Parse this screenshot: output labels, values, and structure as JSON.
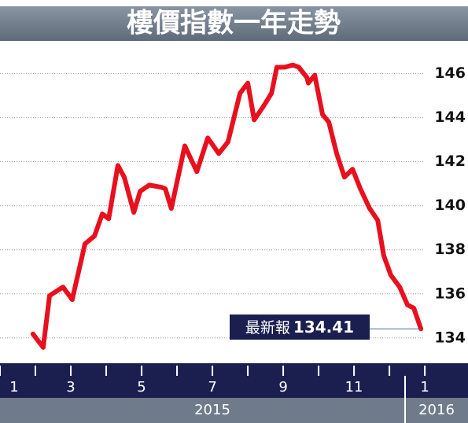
{
  "chart_data": {
    "type": "line",
    "title": "樓價指數一年走勢",
    "x": [
      1.93,
      2.22,
      2.4,
      2.78,
      3.04,
      3.4,
      3.67,
      3.89,
      4.07,
      4.33,
      4.51,
      4.78,
      4.96,
      5.22,
      5.56,
      5.67,
      5.84,
      6.22,
      6.56,
      6.87,
      7.18,
      7.44,
      7.78,
      8.0,
      8.18,
      8.44,
      8.67,
      8.82,
      9.04,
      9.27,
      9.44,
      9.67,
      9.71,
      9.89,
      10.11,
      10.29,
      10.51,
      10.73,
      10.96,
      11.18,
      11.44,
      11.67,
      11.84,
      12.04,
      12.29,
      12.51,
      12.69,
      12.89
    ],
    "values": [
      134.18,
      133.57,
      135.92,
      136.31,
      135.74,
      138.27,
      138.63,
      139.63,
      139.41,
      141.83,
      141.3,
      139.7,
      140.66,
      140.94,
      140.84,
      140.77,
      139.88,
      142.72,
      141.55,
      143.08,
      142.37,
      142.9,
      145.11,
      145.57,
      143.9,
      144.51,
      145.11,
      146.29,
      146.29,
      146.39,
      146.29,
      145.82,
      145.57,
      145.93,
      144.15,
      143.79,
      142.37,
      141.3,
      141.66,
      140.77,
      139.88,
      139.34,
      137.74,
      136.85,
      136.31,
      135.5,
      135.35,
      134.41
    ],
    "color": "#e8101e",
    "xlim": [
      1,
      14.22
    ],
    "xticks": [
      {
        "value": 1,
        "label": "1"
      },
      {
        "value": 2,
        "label": null
      },
      {
        "value": 3,
        "label": "3"
      },
      {
        "value": 4,
        "label": null
      },
      {
        "value": 5,
        "label": "5"
      },
      {
        "value": 6,
        "label": null
      },
      {
        "value": 7,
        "label": "7"
      },
      {
        "value": 8,
        "label": null
      },
      {
        "value": 9,
        "label": "9"
      },
      {
        "value": 10,
        "label": null
      },
      {
        "value": 11,
        "label": "11"
      },
      {
        "value": 12,
        "label": null
      },
      {
        "value": 13,
        "label": "1"
      }
    ],
    "x_groups": [
      "2015",
      "2016"
    ],
    "ylim": [
      133.1,
      147.2
    ],
    "yticks": [
      134,
      136,
      138,
      140,
      142,
      144,
      146
    ],
    "grid": true,
    "annotation": {
      "text": "最新報"
    }
  }
}
